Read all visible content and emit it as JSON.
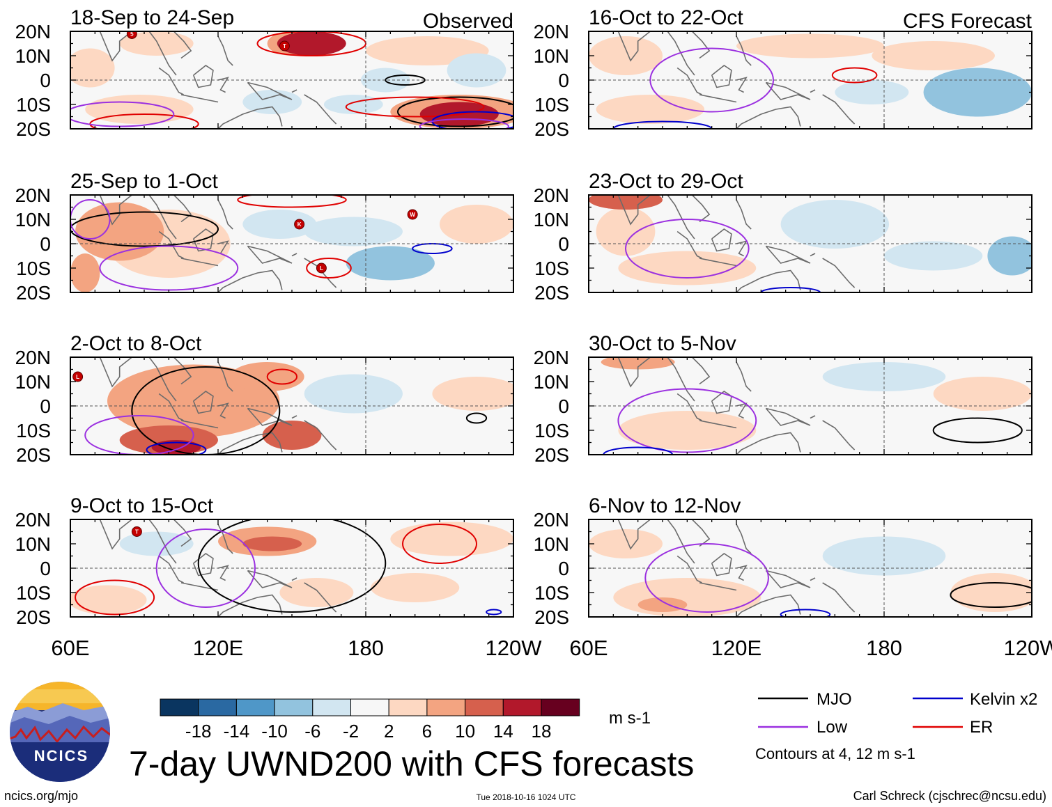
{
  "chart_data": {
    "type": "heatmap",
    "title": "7-day UWND200 with CFS forecasts",
    "variable": "UWND200",
    "units": "m s-1",
    "colorbar": {
      "ticks": [
        "-18",
        "-14",
        "-10",
        "-6",
        "-2",
        "2",
        "6",
        "10",
        "14",
        "18"
      ],
      "colors": [
        "#0a3560",
        "#2a69a2",
        "#4f97c8",
        "#92c3de",
        "#d2e6f1",
        "#f7f7f7",
        "#fdd8c2",
        "#f3a481",
        "#d6604d",
        "#b2182b",
        "#67001f"
      ]
    },
    "x_ticks": [
      "60E",
      "120E",
      "180",
      "120W"
    ],
    "y_ticks": [
      "20N",
      "10N",
      "0",
      "10S",
      "20S"
    ],
    "xlim": [
      60,
      240
    ],
    "ylim": [
      -20,
      20
    ],
    "panels": [
      {
        "title": "18-Sep to 24-Sep",
        "label": "Observed",
        "column": "observed",
        "anomalies": [
          {
            "lon": 158,
            "lat": 15,
            "rx": 14,
            "ry": 5,
            "value": 16
          },
          {
            "lon": 150,
            "lat": 15,
            "rx": 10,
            "ry": 5,
            "value": 8
          },
          {
            "lon": 95,
            "lat": 15,
            "rx": 15,
            "ry": 5,
            "value": 4
          },
          {
            "lon": 68,
            "lat": 5,
            "rx": 10,
            "ry": 8,
            "value": 4
          },
          {
            "lon": 205,
            "lat": 12,
            "rx": 25,
            "ry": 6,
            "value": 4
          },
          {
            "lon": 218,
            "lat": -13,
            "rx": 28,
            "ry": 7,
            "value": 10
          },
          {
            "lon": 218,
            "lat": -14,
            "rx": 16,
            "ry": 5,
            "value": 18
          },
          {
            "lon": 88,
            "lat": -12,
            "rx": 22,
            "ry": 6,
            "value": 4
          },
          {
            "lon": 142,
            "lat": -9,
            "rx": 12,
            "ry": 5,
            "value": -4
          },
          {
            "lon": 175,
            "lat": -10,
            "rx": 12,
            "ry": 4,
            "value": -4
          },
          {
            "lon": 188,
            "lat": 0,
            "rx": 10,
            "ry": 5,
            "value": -4
          },
          {
            "lon": 225,
            "lat": 4,
            "rx": 12,
            "ry": 7,
            "value": -4
          }
        ],
        "contours": [
          {
            "wave": "MJO",
            "lon": 218,
            "lat": -13,
            "rx": 25,
            "ry": 6
          },
          {
            "wave": "MJO",
            "lon": 196,
            "lat": 0,
            "rx": 8,
            "ry": 2
          },
          {
            "wave": "ER",
            "lon": 200,
            "lat": -11,
            "rx": 28,
            "ry": 4
          },
          {
            "wave": "ER",
            "lon": 158,
            "lat": 15,
            "rx": 22,
            "ry": 5
          },
          {
            "wave": "ER",
            "lon": 90,
            "lat": -18,
            "rx": 22,
            "ry": 4
          },
          {
            "wave": "Kelvin",
            "lon": 225,
            "lat": -17,
            "rx": 18,
            "ry": 4
          },
          {
            "wave": "Low",
            "lon": 80,
            "lat": -14,
            "rx": 22,
            "ry": 5
          },
          {
            "wave": "Low",
            "lon": 220,
            "lat": -19,
            "rx": 18,
            "ry": 3
          }
        ],
        "storms": [
          {
            "lon": 85,
            "lat": 19,
            "letter": "5"
          },
          {
            "lon": 147,
            "lat": 14,
            "letter": "T"
          }
        ]
      },
      {
        "title": "16-Oct to 22-Oct",
        "label": "CFS Forecast",
        "column": "forecast",
        "anomalies": [
          {
            "lon": 75,
            "lat": 10,
            "rx": 15,
            "ry": 8,
            "value": 4
          },
          {
            "lon": 150,
            "lat": 14,
            "rx": 30,
            "ry": 5,
            "value": 4
          },
          {
            "lon": 200,
            "lat": 10,
            "rx": 25,
            "ry": 6,
            "value": 4
          },
          {
            "lon": 85,
            "lat": -12,
            "rx": 22,
            "ry": 6,
            "value": 4
          },
          {
            "lon": 175,
            "lat": -5,
            "rx": 15,
            "ry": 5,
            "value": -4
          },
          {
            "lon": 218,
            "lat": -5,
            "rx": 22,
            "ry": 10,
            "value": -6
          }
        ],
        "contours": [
          {
            "wave": "ER",
            "lon": 168,
            "lat": 2,
            "rx": 9,
            "ry": 3
          },
          {
            "wave": "Low",
            "lon": 110,
            "lat": 0,
            "rx": 25,
            "ry": 13
          },
          {
            "wave": "Kelvin",
            "lon": 90,
            "lat": -20,
            "rx": 20,
            "ry": 3
          }
        ],
        "storms": []
      },
      {
        "title": "25-Sep to 1-Oct",
        "label": "",
        "column": "observed",
        "anomalies": [
          {
            "lon": 80,
            "lat": 5,
            "rx": 18,
            "ry": 12,
            "value": 10
          },
          {
            "lon": 100,
            "lat": 0,
            "rx": 25,
            "ry": 14,
            "value": 6
          },
          {
            "lon": 66,
            "lat": -12,
            "rx": 6,
            "ry": 8,
            "value": 10
          },
          {
            "lon": 145,
            "lat": 8,
            "rx": 15,
            "ry": 6,
            "value": -4
          },
          {
            "lon": 175,
            "lat": 5,
            "rx": 20,
            "ry": 6,
            "value": -4
          },
          {
            "lon": 190,
            "lat": -8,
            "rx": 18,
            "ry": 7,
            "value": -6
          },
          {
            "lon": 225,
            "lat": 8,
            "rx": 15,
            "ry": 8,
            "value": 4
          }
        ],
        "contours": [
          {
            "wave": "MJO",
            "lon": 90,
            "lat": 6,
            "rx": 30,
            "ry": 7
          },
          {
            "wave": "ER",
            "lon": 165,
            "lat": -10,
            "rx": 9,
            "ry": 4
          },
          {
            "wave": "ER",
            "lon": 150,
            "lat": 18,
            "rx": 22,
            "ry": 3
          },
          {
            "wave": "Kelvin",
            "lon": 207,
            "lat": -2,
            "rx": 8,
            "ry": 2
          },
          {
            "wave": "Low",
            "lon": 100,
            "lat": -10,
            "rx": 28,
            "ry": 9
          },
          {
            "wave": "Low",
            "lon": 68,
            "lat": 10,
            "rx": 8,
            "ry": 8
          }
        ],
        "storms": [
          {
            "lon": 153,
            "lat": 8,
            "letter": "K"
          },
          {
            "lon": 162,
            "lat": -10,
            "letter": "L"
          },
          {
            "lon": 199,
            "lat": 12,
            "letter": "W"
          }
        ]
      },
      {
        "title": "23-Oct to 29-Oct",
        "label": "",
        "column": "forecast",
        "anomalies": [
          {
            "lon": 75,
            "lat": 18,
            "rx": 15,
            "ry": 4,
            "value": 14
          },
          {
            "lon": 75,
            "lat": 5,
            "rx": 12,
            "ry": 10,
            "value": 6
          },
          {
            "lon": 100,
            "lat": -10,
            "rx": 28,
            "ry": 7,
            "value": 6
          },
          {
            "lon": 160,
            "lat": 8,
            "rx": 22,
            "ry": 10,
            "value": -4
          },
          {
            "lon": 232,
            "lat": -5,
            "rx": 10,
            "ry": 8,
            "value": -6
          },
          {
            "lon": 200,
            "lat": -5,
            "rx": 20,
            "ry": 6,
            "value": -2
          }
        ],
        "contours": [
          {
            "wave": "Low",
            "lon": 100,
            "lat": -2,
            "rx": 25,
            "ry": 12
          },
          {
            "wave": "Kelvin",
            "lon": 142,
            "lat": -20,
            "rx": 12,
            "ry": 2
          }
        ],
        "storms": []
      },
      {
        "title": "2-Oct to 8-Oct",
        "label": "",
        "column": "observed",
        "anomalies": [
          {
            "lon": 110,
            "lat": 2,
            "rx": 35,
            "ry": 15,
            "value": 10
          },
          {
            "lon": 100,
            "lat": -14,
            "rx": 20,
            "ry": 6,
            "value": 14
          },
          {
            "lon": 103,
            "lat": -17,
            "rx": 10,
            "ry": 3,
            "value": 18
          },
          {
            "lon": 140,
            "lat": 12,
            "rx": 15,
            "ry": 6,
            "value": 10
          },
          {
            "lon": 150,
            "lat": -12,
            "rx": 12,
            "ry": 6,
            "value": 14
          },
          {
            "lon": 175,
            "lat": 5,
            "rx": 20,
            "ry": 8,
            "value": -4
          },
          {
            "lon": 225,
            "lat": 5,
            "rx": 18,
            "ry": 7,
            "value": 4
          }
        ],
        "contours": [
          {
            "wave": "MJO",
            "lon": 115,
            "lat": -2,
            "rx": 30,
            "ry": 18
          },
          {
            "wave": "MJO",
            "lon": 225,
            "lat": -5,
            "rx": 4,
            "ry": 2
          },
          {
            "wave": "ER",
            "lon": 146,
            "lat": 12,
            "rx": 6,
            "ry": 3
          },
          {
            "wave": "Kelvin",
            "lon": 103,
            "lat": -18,
            "rx": 12,
            "ry": 3
          },
          {
            "wave": "Low",
            "lon": 88,
            "lat": -12,
            "rx": 22,
            "ry": 8
          }
        ],
        "storms": [
          {
            "lon": 63,
            "lat": 12,
            "letter": "L"
          }
        ]
      },
      {
        "title": "30-Oct to 5-Nov",
        "label": "",
        "column": "forecast",
        "anomalies": [
          {
            "lon": 80,
            "lat": 18,
            "rx": 15,
            "ry": 3,
            "value": 10
          },
          {
            "lon": 100,
            "lat": -10,
            "rx": 28,
            "ry": 8,
            "value": 6
          },
          {
            "lon": 180,
            "lat": 12,
            "rx": 25,
            "ry": 6,
            "value": -2
          },
          {
            "lon": 220,
            "lat": 5,
            "rx": 20,
            "ry": 7,
            "value": 4
          }
        ],
        "contours": [
          {
            "wave": "MJO",
            "lon": 218,
            "lat": -10,
            "rx": 18,
            "ry": 5
          },
          {
            "wave": "Low",
            "lon": 100,
            "lat": -6,
            "rx": 28,
            "ry": 13
          },
          {
            "wave": "Kelvin",
            "lon": 80,
            "lat": -20,
            "rx": 14,
            "ry": 3
          }
        ],
        "storms": []
      },
      {
        "title": "9-Oct to 15-Oct",
        "label": "",
        "column": "observed",
        "anomalies": [
          {
            "lon": 140,
            "lat": 11,
            "rx": 20,
            "ry": 6,
            "value": 10
          },
          {
            "lon": 142,
            "lat": 10,
            "rx": 12,
            "ry": 3,
            "value": 14
          },
          {
            "lon": 75,
            "lat": -13,
            "rx": 16,
            "ry": 6,
            "value": 6
          },
          {
            "lon": 160,
            "lat": -10,
            "rx": 15,
            "ry": 6,
            "value": 4
          },
          {
            "lon": 95,
            "lat": 10,
            "rx": 15,
            "ry": 5,
            "value": -4
          },
          {
            "lon": 215,
            "lat": 12,
            "rx": 25,
            "ry": 7,
            "value": 4
          },
          {
            "lon": 200,
            "lat": -8,
            "rx": 18,
            "ry": 6,
            "value": 4
          }
        ],
        "contours": [
          {
            "wave": "MJO",
            "lon": 150,
            "lat": 2,
            "rx": 38,
            "ry": 20
          },
          {
            "wave": "ER",
            "lon": 210,
            "lat": 10,
            "rx": 15,
            "ry": 8
          },
          {
            "wave": "ER",
            "lon": 78,
            "lat": -12,
            "rx": 16,
            "ry": 7
          },
          {
            "wave": "Kelvin",
            "lon": 232,
            "lat": -18,
            "rx": 3,
            "ry": 1
          },
          {
            "wave": "Low",
            "lon": 115,
            "lat": 0,
            "rx": 20,
            "ry": 16
          }
        ],
        "storms": [
          {
            "lon": 87,
            "lat": 15,
            "letter": "T"
          }
        ]
      },
      {
        "title": "6-Nov to 12-Nov",
        "label": "",
        "column": "forecast",
        "anomalies": [
          {
            "lon": 100,
            "lat": -12,
            "rx": 30,
            "ry": 8,
            "value": 6
          },
          {
            "lon": 90,
            "lat": -15,
            "rx": 10,
            "ry": 3,
            "value": 10
          },
          {
            "lon": 225,
            "lat": -10,
            "rx": 18,
            "ry": 8,
            "value": 6
          },
          {
            "lon": 180,
            "lat": 5,
            "rx": 25,
            "ry": 8,
            "value": -2
          },
          {
            "lon": 75,
            "lat": 10,
            "rx": 15,
            "ry": 6,
            "value": 4
          }
        ],
        "contours": [
          {
            "wave": "MJO",
            "lon": 225,
            "lat": -11,
            "rx": 18,
            "ry": 5
          },
          {
            "wave": "Low",
            "lon": 108,
            "lat": -4,
            "rx": 25,
            "ry": 14
          },
          {
            "wave": "Kelvin",
            "lon": 148,
            "lat": -19,
            "rx": 10,
            "ry": 2
          }
        ],
        "storms": []
      }
    ],
    "legend": [
      {
        "label": "MJO",
        "color": "#000000"
      },
      {
        "label": "Low",
        "color": "#9b30e0"
      },
      {
        "label": "Kelvin x2",
        "color": "#0000cc"
      },
      {
        "label": "ER",
        "color": "#e00000"
      }
    ],
    "contour_note": "Contours at 4, 12 m s-1"
  },
  "footer": {
    "logo_text": "NCICS",
    "website": "ncics.org/mjo",
    "timestamp": "Tue 2018-10-16 1024 UTC",
    "credit": "Carl Schreck (cjschrec@ncsu.edu)"
  }
}
